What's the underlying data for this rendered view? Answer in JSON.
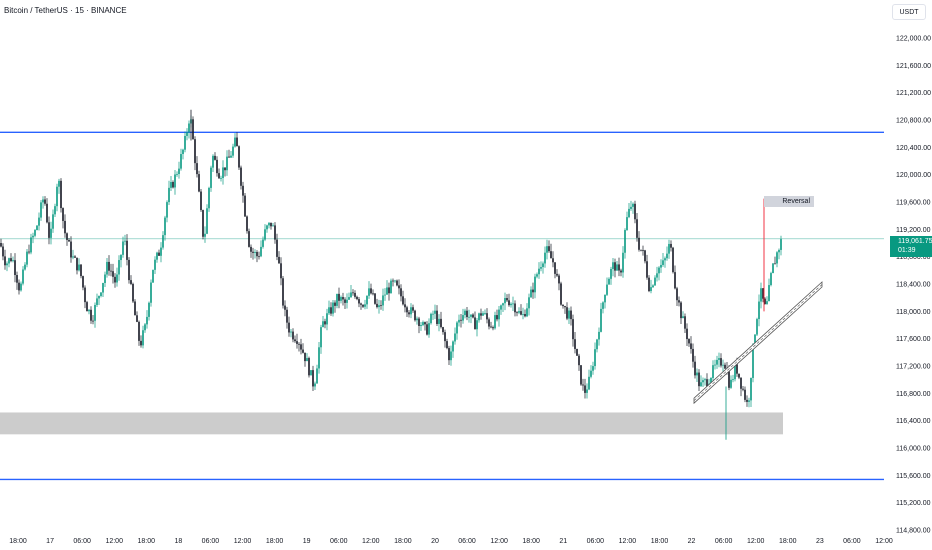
{
  "header": {
    "title": "Bitcoin / TetherUS · 15 · BINANCE",
    "currency_button": "USDT"
  },
  "price_tag": {
    "price": "119,061.75",
    "countdown": "01:39"
  },
  "annotation": {
    "reversal_label": "Reversal"
  },
  "colors": {
    "up": "#089981",
    "down": "#131722",
    "level_line": "#2962ff",
    "zone": "#c9c9c9",
    "current_price_line": "#089981",
    "reversal_line": "#f23645"
  },
  "chart_data": {
    "type": "line",
    "y_axis": {
      "ticks": [
        "122,000.00",
        "121,600.00",
        "121,200.00",
        "120,800.00",
        "120,400.00",
        "120,000.00",
        "119,600.00",
        "119,200.00",
        "118,800.00",
        "118,400.00",
        "118,000.00",
        "117,600.00",
        "117,200.00",
        "116,800.00",
        "116,400.00",
        "116,000.00",
        "115,600.00",
        "115,200.00",
        "114,800.00"
      ],
      "range": [
        114800,
        122000
      ]
    },
    "x_axis": {
      "ticks": [
        "18:00",
        "17",
        "06:00",
        "12:00",
        "18:00",
        "18",
        "06:00",
        "12:00",
        "18:00",
        "19",
        "06:00",
        "12:00",
        "18:00",
        "20",
        "06:00",
        "12:00",
        "18:00",
        "21",
        "06:00",
        "12:00",
        "18:00",
        "22",
        "06:00",
        "12:00",
        "18:00",
        "23",
        "06:00",
        "12:00"
      ]
    },
    "horizontal_levels": [
      120620,
      115540
    ],
    "support_zone": [
      116200,
      116520
    ],
    "current_price": 119061.75,
    "price_path": [
      [
        0,
        119000
      ],
      [
        6,
        118700
      ],
      [
        12,
        118800
      ],
      [
        20,
        118300
      ],
      [
        28,
        118900
      ],
      [
        36,
        119200
      ],
      [
        44,
        119700
      ],
      [
        50,
        119000
      ],
      [
        58,
        120000
      ],
      [
        64,
        119200
      ],
      [
        72,
        118800
      ],
      [
        80,
        118600
      ],
      [
        86,
        118100
      ],
      [
        92,
        117900
      ],
      [
        100,
        118300
      ],
      [
        108,
        118700
      ],
      [
        116,
        118400
      ],
      [
        124,
        119100
      ],
      [
        132,
        118200
      ],
      [
        140,
        117500
      ],
      [
        146,
        117800
      ],
      [
        152,
        118600
      ],
      [
        160,
        118900
      ],
      [
        168,
        119700
      ],
      [
        176,
        120000
      ],
      [
        184,
        120400
      ],
      [
        190,
        120900
      ],
      [
        196,
        120100
      ],
      [
        204,
        119000
      ],
      [
        212,
        120300
      ],
      [
        220,
        120000
      ],
      [
        228,
        120200
      ],
      [
        236,
        120500
      ],
      [
        242,
        119800
      ],
      [
        250,
        118900
      ],
      [
        258,
        118800
      ],
      [
        266,
        119200
      ],
      [
        272,
        119300
      ],
      [
        278,
        118800
      ],
      [
        284,
        118000
      ],
      [
        290,
        117700
      ],
      [
        298,
        117600
      ],
      [
        306,
        117300
      ],
      [
        314,
        116900
      ],
      [
        322,
        117800
      ],
      [
        330,
        118000
      ],
      [
        338,
        118200
      ],
      [
        346,
        118100
      ],
      [
        354,
        118300
      ],
      [
        362,
        118100
      ],
      [
        370,
        118300
      ],
      [
        378,
        118000
      ],
      [
        386,
        118300
      ],
      [
        394,
        118400
      ],
      [
        402,
        118200
      ],
      [
        410,
        118000
      ],
      [
        418,
        117900
      ],
      [
        426,
        117700
      ],
      [
        434,
        118000
      ],
      [
        442,
        117700
      ],
      [
        450,
        117300
      ],
      [
        458,
        117900
      ],
      [
        466,
        118000
      ],
      [
        474,
        117800
      ],
      [
        482,
        118000
      ],
      [
        490,
        117800
      ],
      [
        498,
        117900
      ],
      [
        506,
        118200
      ],
      [
        514,
        118100
      ],
      [
        522,
        117900
      ],
      [
        530,
        118200
      ],
      [
        538,
        118600
      ],
      [
        546,
        118900
      ],
      [
        554,
        118700
      ],
      [
        562,
        118100
      ],
      [
        570,
        117900
      ],
      [
        578,
        117200
      ],
      [
        584,
        116800
      ],
      [
        590,
        117000
      ],
      [
        598,
        117700
      ],
      [
        606,
        118400
      ],
      [
        614,
        118700
      ],
      [
        620,
        118500
      ],
      [
        626,
        119300
      ],
      [
        632,
        119600
      ],
      [
        638,
        119000
      ],
      [
        644,
        118800
      ],
      [
        650,
        118300
      ],
      [
        656,
        118600
      ],
      [
        664,
        118700
      ],
      [
        670,
        119000
      ],
      [
        676,
        118300
      ],
      [
        682,
        117900
      ],
      [
        688,
        117600
      ],
      [
        694,
        117200
      ],
      [
        700,
        116900
      ],
      [
        708,
        117000
      ],
      [
        716,
        117200
      ],
      [
        724,
        117300
      ],
      [
        730,
        116900
      ],
      [
        736,
        117200
      ],
      [
        742,
        116900
      ],
      [
        748,
        116600
      ],
      [
        754,
        117600
      ],
      [
        760,
        118300
      ],
      [
        766,
        118000
      ],
      [
        772,
        118600
      ],
      [
        778,
        118900
      ],
      [
        782,
        119060
      ]
    ],
    "trendline": {
      "from": [
        694,
        116700
      ],
      "to": [
        822,
        118400
      ]
    },
    "reversal_marker": {
      "x": 764,
      "from": 118000,
      "to": 119650
    }
  }
}
